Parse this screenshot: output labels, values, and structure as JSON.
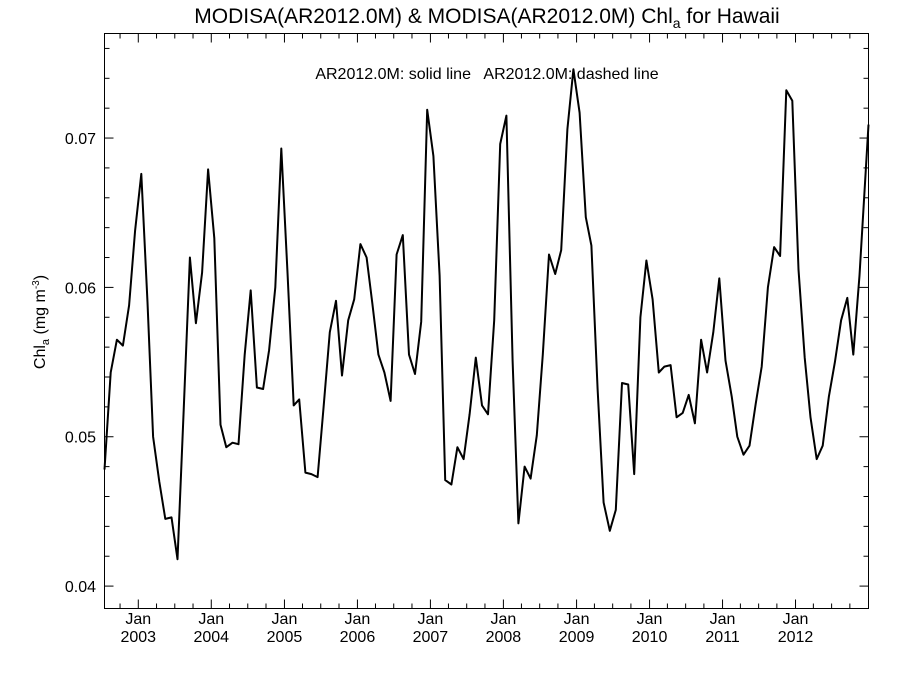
{
  "chart_data": {
    "type": "line",
    "title": "MODISA(AR2012.0M) & MODISA(AR2012.0M)  Chl",
    "title_sub": "a",
    "title_suffix": " for Hawaii",
    "annotation": "AR2012.0M: solid line   AR2012.0M: dashed line",
    "ylabel_main": "Chl",
    "ylabel_sub": "a",
    "ylabel_unit_pre": " (mg m",
    "ylabel_unit_sup": "-3",
    "ylabel_unit_post": ")",
    "ylim": [
      0.0385,
      0.077
    ],
    "yticks": [
      {
        "value": 0.04,
        "label": "0.04"
      },
      {
        "value": 0.05,
        "label": "0.05"
      },
      {
        "value": 0.06,
        "label": "0.06"
      },
      {
        "value": 0.07,
        "label": "0.07"
      }
    ],
    "xlim": [
      "2002-07-16",
      "2012-12-31"
    ],
    "xticks": [
      {
        "date": "2003-01-01",
        "month": "Jan",
        "year": "2003"
      },
      {
        "date": "2004-01-01",
        "month": "Jan",
        "year": "2004"
      },
      {
        "date": "2005-01-01",
        "month": "Jan",
        "year": "2005"
      },
      {
        "date": "2006-01-01",
        "month": "Jan",
        "year": "2006"
      },
      {
        "date": "2007-01-01",
        "month": "Jan",
        "year": "2007"
      },
      {
        "date": "2008-01-01",
        "month": "Jan",
        "year": "2008"
      },
      {
        "date": "2009-01-01",
        "month": "Jan",
        "year": "2009"
      },
      {
        "date": "2010-01-01",
        "month": "Jan",
        "year": "2010"
      },
      {
        "date": "2011-01-01",
        "month": "Jan",
        "year": "2011"
      },
      {
        "date": "2012-01-01",
        "month": "Jan",
        "year": "2012"
      }
    ],
    "series": [
      {
        "style": "solid",
        "points": [
          [
            "2002-07-16",
            0.0478
          ],
          [
            "2002-08-16",
            0.0543
          ],
          [
            "2002-09-16",
            0.0565
          ],
          [
            "2002-10-16",
            0.0561
          ],
          [
            "2002-11-16",
            0.0588
          ],
          [
            "2002-12-16",
            0.0638
          ],
          [
            "2003-01-16",
            0.0676
          ],
          [
            "2003-02-16",
            0.059
          ],
          [
            "2003-03-16",
            0.05
          ],
          [
            "2003-04-16",
            0.047
          ],
          [
            "2003-05-16",
            0.0445
          ],
          [
            "2003-06-16",
            0.0446
          ],
          [
            "2003-07-16",
            0.0418
          ],
          [
            "2003-08-16",
            0.0518
          ],
          [
            "2003-09-16",
            0.062
          ],
          [
            "2003-10-16",
            0.0576
          ],
          [
            "2003-11-16",
            0.061
          ],
          [
            "2003-12-16",
            0.0679
          ],
          [
            "2004-01-16",
            0.0633
          ],
          [
            "2004-02-16",
            0.0508
          ],
          [
            "2004-03-16",
            0.0493
          ],
          [
            "2004-04-16",
            0.0496
          ],
          [
            "2004-05-16",
            0.0495
          ],
          [
            "2004-06-16",
            0.0555
          ],
          [
            "2004-07-16",
            0.0598
          ],
          [
            "2004-08-16",
            0.0533
          ],
          [
            "2004-09-16",
            0.0532
          ],
          [
            "2004-10-16",
            0.0558
          ],
          [
            "2004-11-16",
            0.06
          ],
          [
            "2004-12-16",
            0.0693
          ],
          [
            "2005-01-16",
            0.061
          ],
          [
            "2005-02-16",
            0.0521
          ],
          [
            "2005-03-16",
            0.0525
          ],
          [
            "2005-04-16",
            0.0476
          ],
          [
            "2005-05-16",
            0.0475
          ],
          [
            "2005-06-16",
            0.0473
          ],
          [
            "2005-07-16",
            0.052
          ],
          [
            "2005-08-16",
            0.057
          ],
          [
            "2005-09-16",
            0.0591
          ],
          [
            "2005-10-16",
            0.0541
          ],
          [
            "2005-11-16",
            0.0578
          ],
          [
            "2005-12-16",
            0.0592
          ],
          [
            "2006-01-16",
            0.0629
          ],
          [
            "2006-02-16",
            0.062
          ],
          [
            "2006-03-16",
            0.059
          ],
          [
            "2006-04-16",
            0.0555
          ],
          [
            "2006-05-16",
            0.0543
          ],
          [
            "2006-06-16",
            0.0524
          ],
          [
            "2006-07-16",
            0.0622
          ],
          [
            "2006-08-16",
            0.0635
          ],
          [
            "2006-09-16",
            0.0555
          ],
          [
            "2006-10-16",
            0.0542
          ],
          [
            "2006-11-16",
            0.0577
          ],
          [
            "2006-12-16",
            0.0719
          ],
          [
            "2007-01-16",
            0.0688
          ],
          [
            "2007-02-16",
            0.0608
          ],
          [
            "2007-03-16",
            0.0471
          ],
          [
            "2007-04-16",
            0.0468
          ],
          [
            "2007-05-16",
            0.0493
          ],
          [
            "2007-06-16",
            0.0485
          ],
          [
            "2007-07-16",
            0.0515
          ],
          [
            "2007-08-16",
            0.0553
          ],
          [
            "2007-09-16",
            0.0521
          ],
          [
            "2007-10-16",
            0.0515
          ],
          [
            "2007-11-16",
            0.0578
          ],
          [
            "2007-12-16",
            0.0696
          ],
          [
            "2008-01-16",
            0.0715
          ],
          [
            "2008-02-16",
            0.0551
          ],
          [
            "2008-03-16",
            0.0442
          ],
          [
            "2008-04-16",
            0.048
          ],
          [
            "2008-05-16",
            0.0472
          ],
          [
            "2008-06-16",
            0.0501
          ],
          [
            "2008-07-16",
            0.0555
          ],
          [
            "2008-08-16",
            0.0622
          ],
          [
            "2008-09-16",
            0.0609
          ],
          [
            "2008-10-16",
            0.0625
          ],
          [
            "2008-11-16",
            0.0706
          ],
          [
            "2008-12-16",
            0.0746
          ],
          [
            "2009-01-16",
            0.0717
          ],
          [
            "2009-02-16",
            0.0647
          ],
          [
            "2009-03-16",
            0.0628
          ],
          [
            "2009-04-16",
            0.0532
          ],
          [
            "2009-05-16",
            0.0456
          ],
          [
            "2009-06-16",
            0.0437
          ],
          [
            "2009-07-16",
            0.0451
          ],
          [
            "2009-08-16",
            0.0536
          ],
          [
            "2009-09-16",
            0.0535
          ],
          [
            "2009-10-16",
            0.0475
          ],
          [
            "2009-11-16",
            0.058
          ],
          [
            "2009-12-16",
            0.0618
          ],
          [
            "2010-01-16",
            0.0592
          ],
          [
            "2010-02-16",
            0.0543
          ],
          [
            "2010-03-16",
            0.0547
          ],
          [
            "2010-04-16",
            0.0548
          ],
          [
            "2010-05-16",
            0.0513
          ],
          [
            "2010-06-16",
            0.0516
          ],
          [
            "2010-07-16",
            0.0528
          ],
          [
            "2010-08-16",
            0.0509
          ],
          [
            "2010-09-16",
            0.0565
          ],
          [
            "2010-10-16",
            0.0543
          ],
          [
            "2010-11-16",
            0.057
          ],
          [
            "2010-12-16",
            0.0606
          ],
          [
            "2011-01-16",
            0.0551
          ],
          [
            "2011-02-16",
            0.0527
          ],
          [
            "2011-03-16",
            0.05
          ],
          [
            "2011-04-16",
            0.0488
          ],
          [
            "2011-05-16",
            0.0494
          ],
          [
            "2011-06-16",
            0.0522
          ],
          [
            "2011-07-16",
            0.0547
          ],
          [
            "2011-08-16",
            0.06
          ],
          [
            "2011-09-16",
            0.0627
          ],
          [
            "2011-10-16",
            0.0621
          ],
          [
            "2011-11-16",
            0.0732
          ],
          [
            "2011-12-16",
            0.0725
          ],
          [
            "2012-01-16",
            0.0612
          ],
          [
            "2012-02-16",
            0.0553
          ],
          [
            "2012-03-16",
            0.0513
          ],
          [
            "2012-04-16",
            0.0485
          ],
          [
            "2012-05-16",
            0.0494
          ],
          [
            "2012-06-16",
            0.0527
          ],
          [
            "2012-07-16",
            0.055
          ],
          [
            "2012-08-16",
            0.0578
          ],
          [
            "2012-09-16",
            0.0593
          ],
          [
            "2012-10-16",
            0.0555
          ],
          [
            "2012-11-16",
            0.0608
          ],
          [
            "2012-12-31",
            0.0709
          ]
        ]
      }
    ]
  }
}
